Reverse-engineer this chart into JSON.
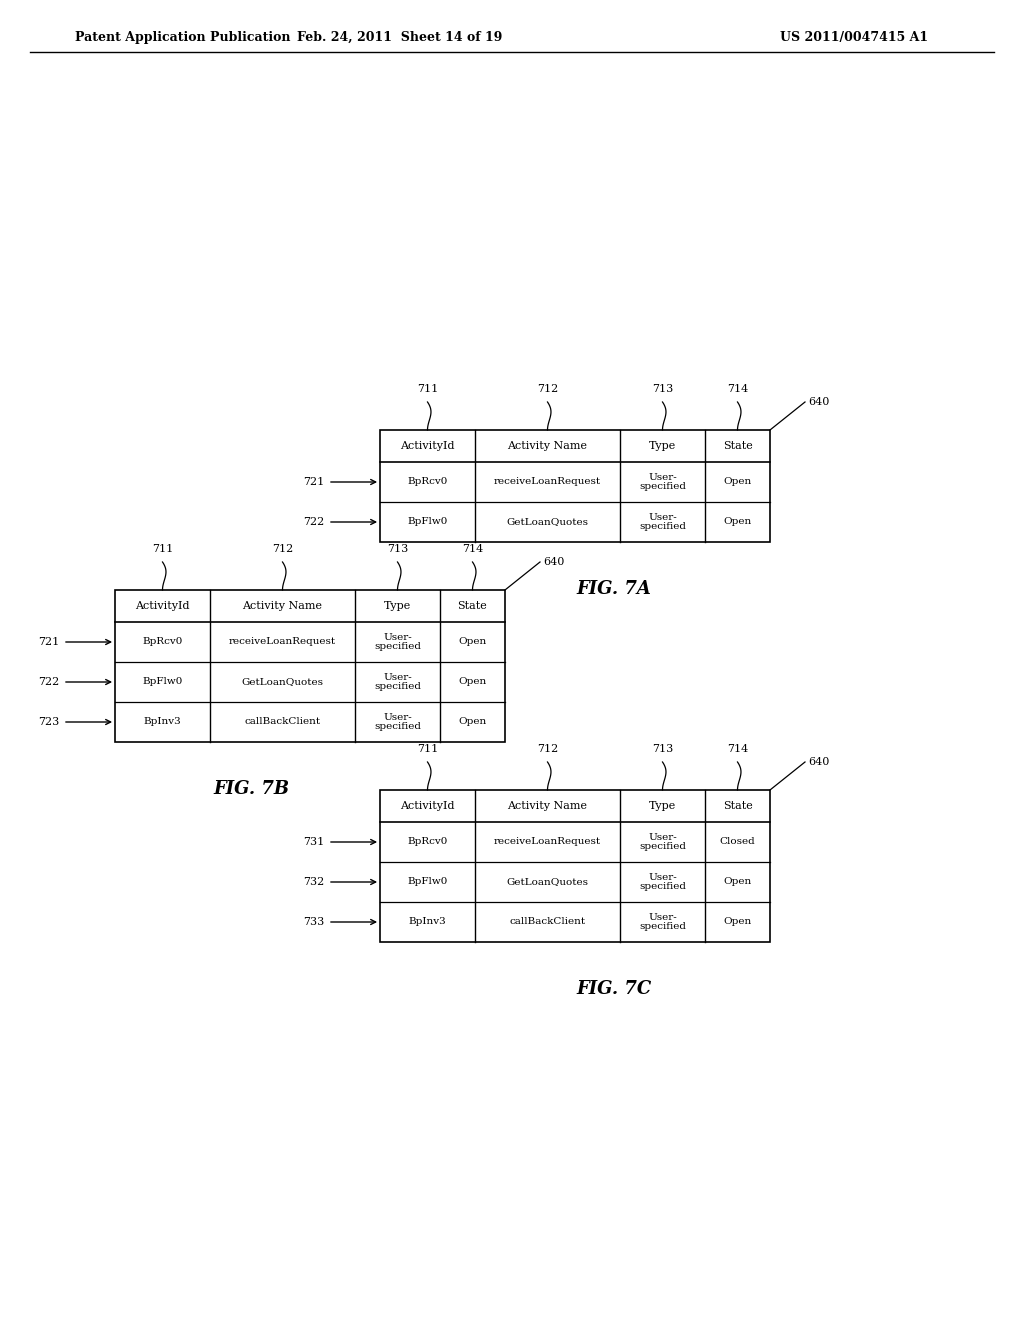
{
  "background_color": "#ffffff",
  "header_left": "Patent Application Publication",
  "header_mid": "Feb. 24, 2011  Sheet 14 of 19",
  "header_right": "US 2011/0047415 A1",
  "fig_7a": {
    "title": "FIG. 7A",
    "col_labels": [
      "711",
      "712",
      "713",
      "714"
    ],
    "label_640": "640",
    "headers": [
      "ActivityId",
      "Activity Name",
      "Type",
      "State"
    ],
    "rows": [
      {
        "arrow_label": "721",
        "cols": [
          "BpRcv0",
          "receiveLoanRequest",
          "User-\nspecified",
          "Open"
        ]
      },
      {
        "arrow_label": "722",
        "cols": [
          "BpFlw0",
          "GetLoanQuotes",
          "User-\nspecified",
          "Open"
        ]
      }
    ]
  },
  "fig_7b": {
    "title": "FIG. 7B",
    "col_labels": [
      "711",
      "712",
      "713",
      "714"
    ],
    "label_640": "640",
    "headers": [
      "ActivityId",
      "Activity Name",
      "Type",
      "State"
    ],
    "rows": [
      {
        "arrow_label": "721",
        "cols": [
          "BpRcv0",
          "receiveLoanRequest",
          "User-\nspecified",
          "Open"
        ]
      },
      {
        "arrow_label": "722",
        "cols": [
          "BpFlw0",
          "GetLoanQuotes",
          "User-\nspecified",
          "Open"
        ]
      },
      {
        "arrow_label": "723",
        "cols": [
          "BpInv3",
          "callBackClient",
          "User-\nspecified",
          "Open"
        ]
      }
    ]
  },
  "fig_7c": {
    "title": "FIG. 7C",
    "col_labels": [
      "711",
      "712",
      "713",
      "714"
    ],
    "label_640": "640",
    "headers": [
      "ActivityId",
      "Activity Name",
      "Type",
      "State"
    ],
    "rows": [
      {
        "arrow_label": "731",
        "cols": [
          "BpRcv0",
          "receiveLoanRequest",
          "User-\nspecified",
          "Closed"
        ]
      },
      {
        "arrow_label": "732",
        "cols": [
          "BpFlw0",
          "GetLoanQuotes",
          "User-\nspecified",
          "Open"
        ]
      },
      {
        "arrow_label": "733",
        "cols": [
          "BpInv3",
          "callBackClient",
          "User-\nspecified",
          "Open"
        ]
      }
    ]
  }
}
